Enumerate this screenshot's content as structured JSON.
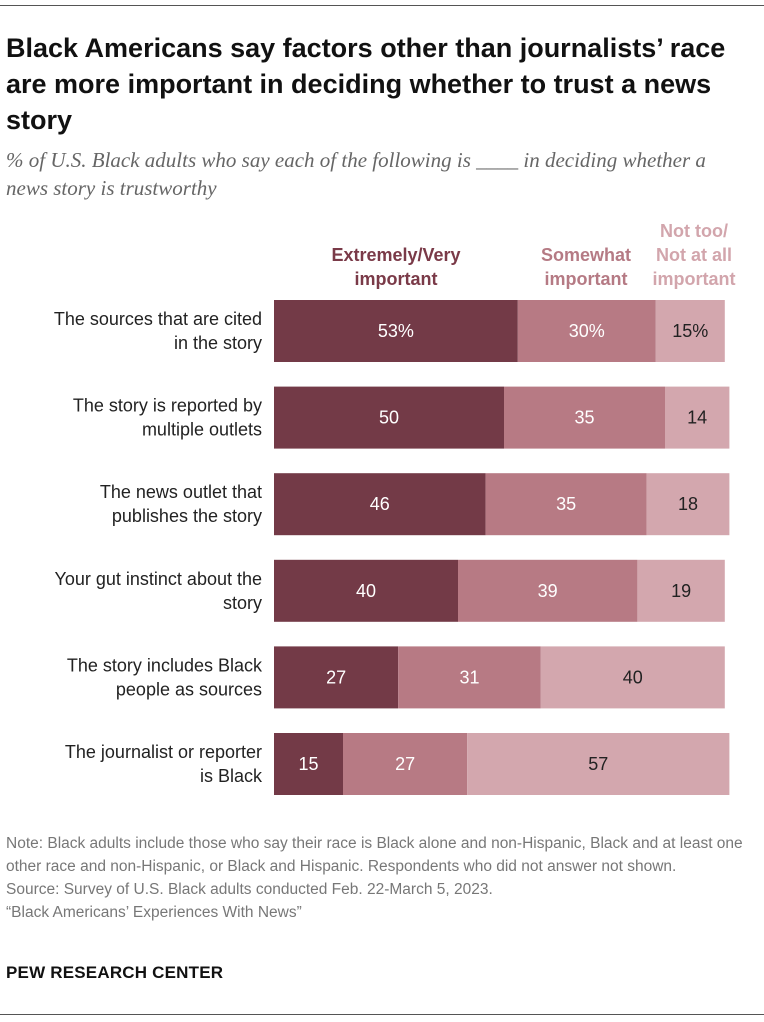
{
  "title": "Black Americans say factors other than journalists’ race are more important in deciding whether to trust a news story",
  "subtitle": "% of U.S. Black adults who say each of the following is ____ in deciding whether a news story is trustworthy",
  "legend": {
    "a_line1": "Extremely/Very",
    "a_line2": "important",
    "b_line1": "Somewhat",
    "b_line2": "important",
    "c_line1": "Not too/",
    "c_line2": "Not at all",
    "c_line3": "important"
  },
  "colors": {
    "extremely_very": "#733a47",
    "somewhat": "#b77a84",
    "not_too": "#d3a7ae"
  },
  "chart_data": {
    "type": "bar",
    "orientation": "horizontal",
    "stacked": true,
    "categories": [
      [
        "The sources that are cited",
        "in the story"
      ],
      [
        "The story is reported by",
        "multiple outlets"
      ],
      [
        "The news outlet that",
        "publishes the story"
      ],
      [
        "Your gut instinct about the",
        "story"
      ],
      [
        "The story includes Black",
        "people as sources"
      ],
      [
        "The journalist or reporter",
        "is Black"
      ]
    ],
    "series": [
      {
        "name": "Extremely/Very important",
        "values": [
          53,
          50,
          46,
          40,
          27,
          15
        ],
        "labels": [
          "53%",
          "50",
          "46",
          "40",
          "27",
          "15"
        ]
      },
      {
        "name": "Somewhat important",
        "values": [
          30,
          35,
          35,
          39,
          31,
          27
        ],
        "labels": [
          "30%",
          "35",
          "35",
          "39",
          "31",
          "27"
        ]
      },
      {
        "name": "Not too/Not at all important",
        "values": [
          15,
          14,
          18,
          19,
          40,
          57
        ],
        "labels": [
          "15%",
          "14",
          "18",
          "19",
          "40",
          "57"
        ]
      }
    ],
    "xlim": [
      0,
      100
    ]
  },
  "notes": {
    "note": "Note: Black adults include those who say their race is Black alone and non-Hispanic, Black and at least one other race and non-Hispanic, or Black and Hispanic. Respondents who did not answer not shown.",
    "source": "Source: Survey of U.S. Black adults conducted Feb. 22-March 5, 2023.",
    "report": "“Black Americans’ Experiences With News”"
  },
  "brand": "PEW RESEARCH CENTER"
}
